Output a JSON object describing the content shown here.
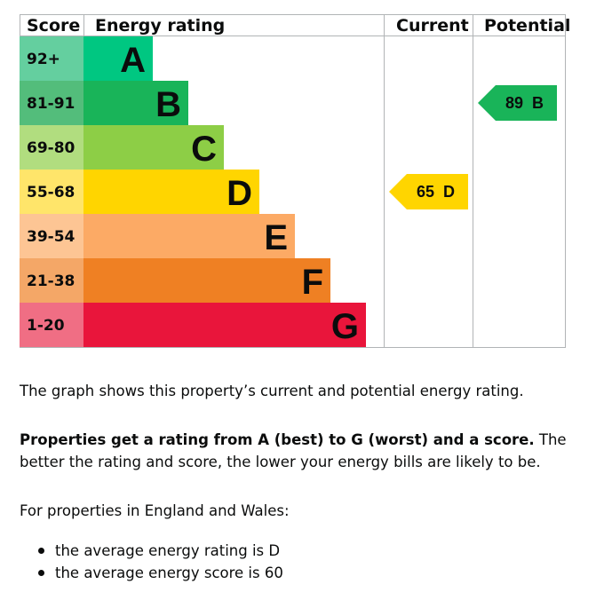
{
  "chart_data": {
    "type": "bar",
    "headers": {
      "score": "Score",
      "rating": "Energy rating",
      "current": "Current",
      "potential": "Potential"
    },
    "bands": [
      {
        "range": "92+",
        "letter": "A",
        "color": "#00c781",
        "range_bg": "#64cf9f"
      },
      {
        "range": "81-91",
        "letter": "B",
        "color": "#19b459",
        "range_bg": "#53bd7b"
      },
      {
        "range": "69-80",
        "letter": "C",
        "color": "#8dce46",
        "range_bg": "#b1dd7f"
      },
      {
        "range": "55-68",
        "letter": "D",
        "color": "#ffd500",
        "range_bg": "#ffe56a"
      },
      {
        "range": "39-54",
        "letter": "E",
        "color": "#fcaa65",
        "range_bg": "#fdc594"
      },
      {
        "range": "21-38",
        "letter": "F",
        "color": "#ef8023",
        "range_bg": "#f4a767"
      },
      {
        "range": "1-20",
        "letter": "G",
        "color": "#e9153b",
        "range_bg": "#f06e84"
      }
    ],
    "current": {
      "score": 65,
      "letter": "D",
      "label": "65 D",
      "color": "#ffd500"
    },
    "potential": {
      "score": 89,
      "letter": "B",
      "label": "89 B",
      "color": "#19b459"
    }
  },
  "description": {
    "intro": "The graph shows this property’s current and potential energy rating.",
    "bold_lead": "Properties get a rating from A (best) to G (worst) and a score.",
    "rest": " The better the rating and score, the lower your energy bills are likely to be.",
    "region": "For properties in England and Wales:",
    "averages": [
      "the average energy rating is D",
      "the average energy score is 60"
    ]
  }
}
